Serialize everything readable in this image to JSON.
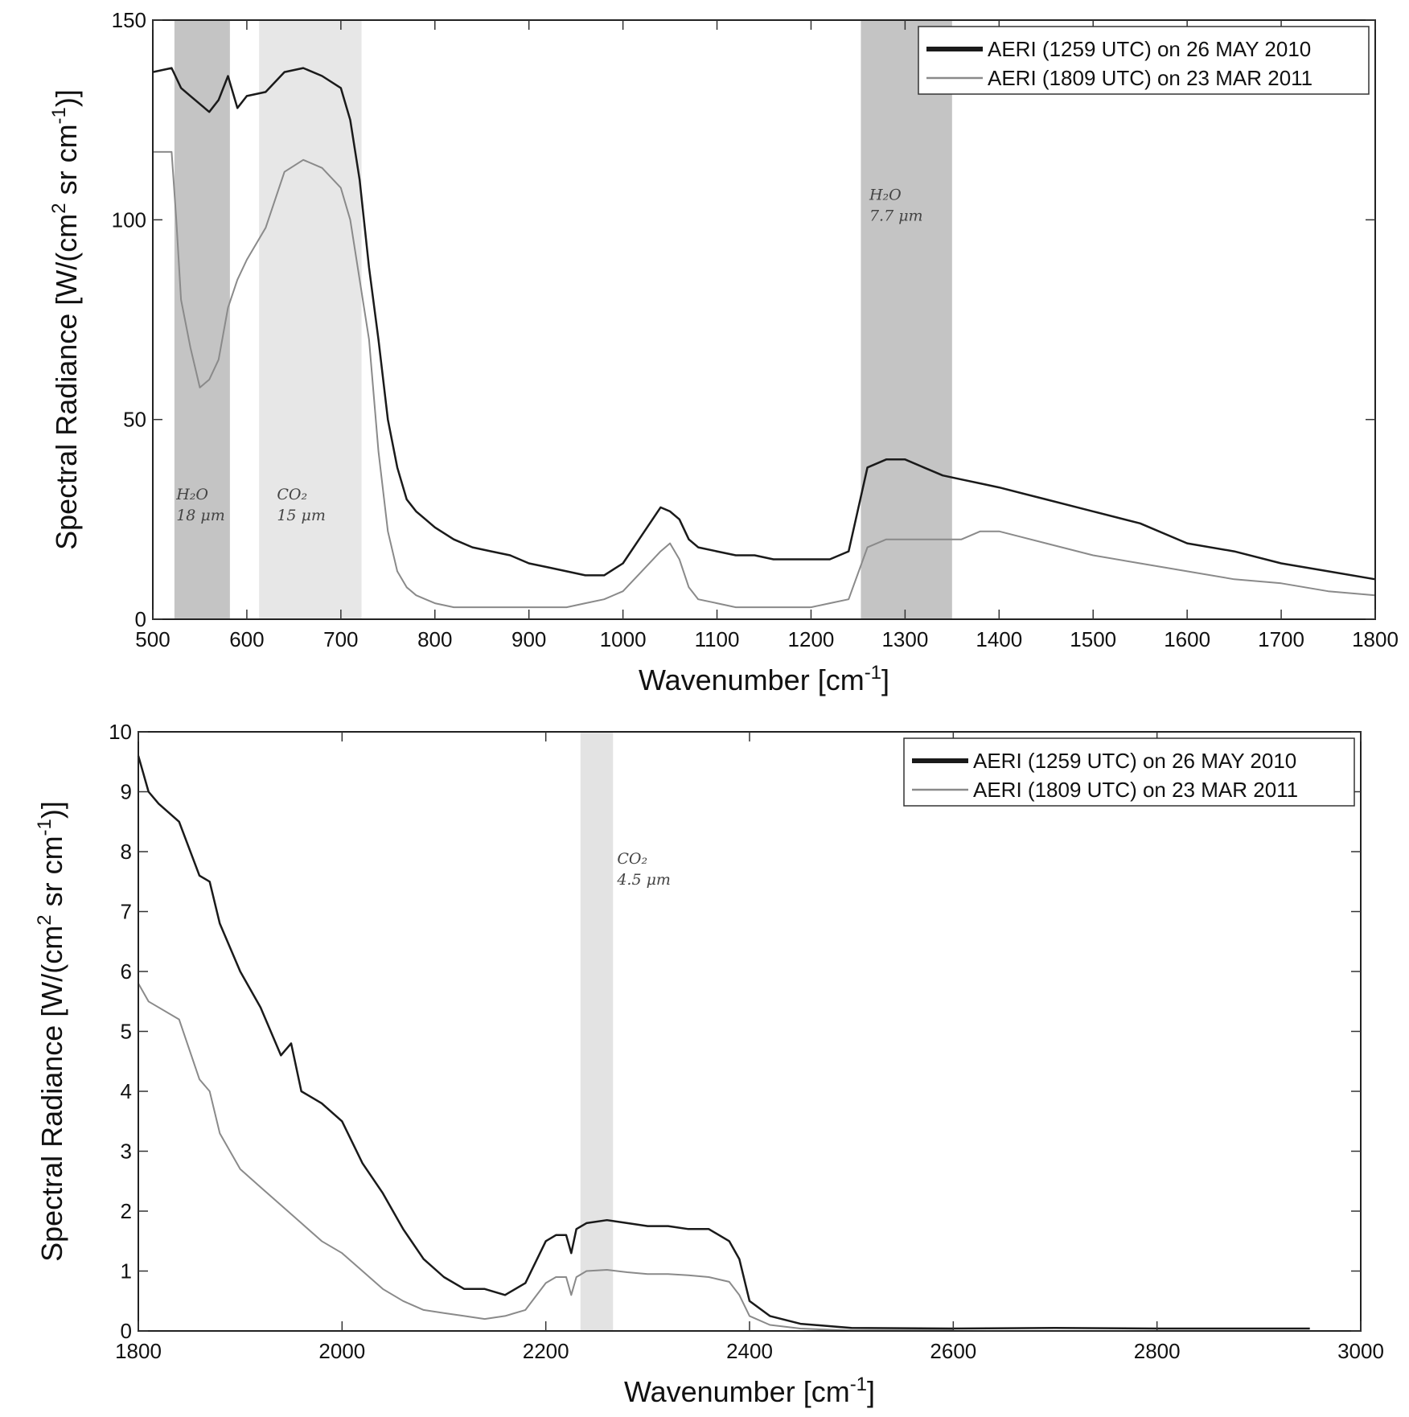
{
  "chart_data": [
    {
      "type": "line",
      "xlabel": "Wavenumber [cm",
      "xlabel_sup": "-1",
      "xlabel_end": "]",
      "ylabel_parts": [
        "Spectral Radiance [W/(cm",
        "2",
        " sr cm",
        "-1",
        ")]"
      ],
      "xlim": [
        500,
        1800
      ],
      "ylim": [
        0,
        150
      ],
      "xticks": [
        500,
        600,
        700,
        800,
        900,
        1000,
        1100,
        1200,
        1300,
        1400,
        1500,
        1600,
        1700,
        1800
      ],
      "yticks": [
        0,
        50,
        100,
        150
      ],
      "legend_position": "top-right",
      "series": [
        {
          "name": "AERI (1259 UTC) on 26 MAY 2010",
          "color": "#1a1a1a",
          "x": [
            500,
            520,
            530,
            540,
            550,
            560,
            570,
            580,
            590,
            600,
            620,
            640,
            660,
            680,
            700,
            710,
            720,
            730,
            740,
            750,
            760,
            770,
            780,
            790,
            800,
            820,
            840,
            860,
            880,
            900,
            920,
            940,
            960,
            980,
            1000,
            1020,
            1040,
            1050,
            1060,
            1070,
            1080,
            1100,
            1120,
            1140,
            1160,
            1180,
            1200,
            1220,
            1240,
            1260,
            1280,
            1300,
            1320,
            1340,
            1360,
            1380,
            1400,
            1450,
            1500,
            1550,
            1600,
            1650,
            1700,
            1750,
            1800
          ],
          "y": [
            137,
            138,
            133,
            131,
            129,
            127,
            130,
            136,
            128,
            131,
            132,
            137,
            138,
            136,
            133,
            125,
            110,
            88,
            70,
            50,
            38,
            30,
            27,
            25,
            23,
            20,
            18,
            17,
            16,
            14,
            13,
            12,
            11,
            11,
            14,
            21,
            28,
            27,
            25,
            20,
            18,
            17,
            16,
            16,
            15,
            15,
            15,
            15,
            17,
            38,
            40,
            40,
            38,
            36,
            35,
            34,
            33,
            30,
            27,
            24,
            19,
            17,
            14,
            12,
            10
          ]
        },
        {
          "name": "AERI (1809 UTC) on 23 MAR 2011",
          "color": "#8a8a8a",
          "x": [
            500,
            520,
            525,
            530,
            540,
            550,
            560,
            570,
            580,
            590,
            600,
            620,
            640,
            660,
            680,
            700,
            710,
            720,
            730,
            740,
            750,
            760,
            770,
            780,
            790,
            800,
            820,
            840,
            860,
            880,
            900,
            920,
            940,
            960,
            980,
            1000,
            1020,
            1040,
            1050,
            1060,
            1070,
            1080,
            1100,
            1120,
            1140,
            1160,
            1180,
            1200,
            1220,
            1240,
            1260,
            1280,
            1300,
            1320,
            1340,
            1360,
            1380,
            1400,
            1450,
            1500,
            1550,
            1600,
            1650,
            1700,
            1750,
            1800
          ],
          "y": [
            117,
            117,
            100,
            80,
            68,
            58,
            60,
            65,
            78,
            85,
            90,
            98,
            112,
            115,
            113,
            108,
            100,
            85,
            70,
            42,
            22,
            12,
            8,
            6,
            5,
            4,
            3,
            3,
            3,
            3,
            3,
            3,
            3,
            4,
            5,
            7,
            12,
            17,
            19,
            15,
            8,
            5,
            4,
            3,
            3,
            3,
            3,
            3,
            4,
            5,
            18,
            20,
            20,
            20,
            20,
            20,
            22,
            22,
            19,
            16,
            14,
            12,
            10,
            9,
            7,
            6
          ]
        }
      ],
      "bands": [
        {
          "x0": 523,
          "x1": 582,
          "color": "#c4c4c4",
          "label": [
            "H₂O",
            "18 μm"
          ],
          "label_x": 525,
          "label_y": 30
        },
        {
          "x0": 613,
          "x1": 722,
          "color": "#e7e7e7",
          "label": [
            "CO₂",
            "15 μm"
          ],
          "label_x": 632,
          "label_y": 30
        },
        {
          "x0": 1253,
          "x1": 1350,
          "color": "#c4c4c4",
          "label": [
            "H₂O",
            "7.7 μm"
          ],
          "label_x": 1262,
          "label_y": 105
        }
      ]
    },
    {
      "type": "line",
      "xlabel": "Wavenumber [cm",
      "xlabel_sup": "-1",
      "xlabel_end": "]",
      "ylabel_parts": [
        "Spectral Radiance [W/(cm",
        "2",
        " sr cm",
        "-1",
        ")]"
      ],
      "xlim": [
        1800,
        3000
      ],
      "ylim": [
        0,
        10
      ],
      "xticks": [
        1800,
        2000,
        2200,
        2400,
        2600,
        2800,
        3000
      ],
      "yticks": [
        0,
        1,
        2,
        3,
        4,
        5,
        6,
        7,
        8,
        9,
        10
      ],
      "legend_position": "top-right",
      "series": [
        {
          "name": "AERI (1259 UTC) on 26 MAY 2010",
          "color": "#1a1a1a",
          "x": [
            1800,
            1810,
            1820,
            1840,
            1860,
            1870,
            1880,
            1900,
            1920,
            1940,
            1950,
            1960,
            1980,
            2000,
            2020,
            2040,
            2060,
            2080,
            2100,
            2120,
            2140,
            2160,
            2180,
            2200,
            2210,
            2220,
            2225,
            2230,
            2240,
            2260,
            2280,
            2300,
            2320,
            2340,
            2360,
            2380,
            2390,
            2400,
            2420,
            2450,
            2500,
            2600,
            2700,
            2800,
            2900,
            2950
          ],
          "y": [
            9.6,
            9.0,
            8.8,
            8.5,
            7.6,
            7.5,
            6.8,
            6.0,
            5.4,
            4.6,
            4.8,
            4.0,
            3.8,
            3.5,
            2.8,
            2.3,
            1.7,
            1.2,
            0.9,
            0.7,
            0.7,
            0.6,
            0.8,
            1.5,
            1.6,
            1.6,
            1.3,
            1.7,
            1.8,
            1.85,
            1.8,
            1.75,
            1.75,
            1.7,
            1.7,
            1.5,
            1.2,
            0.5,
            0.25,
            0.12,
            0.05,
            0.04,
            0.05,
            0.04,
            0.04,
            0.04
          ]
        },
        {
          "name": "AERI (1809 UTC) on 23 MAR 2011",
          "color": "#8a8a8a",
          "x": [
            1800,
            1810,
            1820,
            1840,
            1860,
            1870,
            1880,
            1900,
            1920,
            1940,
            1960,
            1980,
            2000,
            2020,
            2040,
            2060,
            2080,
            2100,
            2120,
            2140,
            2160,
            2180,
            2200,
            2210,
            2220,
            2225,
            2230,
            2240,
            2260,
            2280,
            2300,
            2320,
            2340,
            2360,
            2380,
            2390,
            2400,
            2420,
            2450,
            2480,
            2500,
            2600
          ],
          "y": [
            5.8,
            5.5,
            5.4,
            5.2,
            4.2,
            4.0,
            3.3,
            2.7,
            2.4,
            2.1,
            1.8,
            1.5,
            1.3,
            1.0,
            0.7,
            0.5,
            0.35,
            0.3,
            0.25,
            0.2,
            0.25,
            0.35,
            0.8,
            0.9,
            0.9,
            0.6,
            0.9,
            1.0,
            1.02,
            0.98,
            0.95,
            0.95,
            0.93,
            0.9,
            0.82,
            0.6,
            0.25,
            0.1,
            0.04,
            0.02,
            0.01,
            0.01
          ]
        }
      ],
      "bands": [
        {
          "x0": 2234,
          "x1": 2266,
          "color": "#e3e3e3",
          "label": [
            "CO₂",
            "4.5 μm"
          ],
          "label_x": 2270,
          "label_y": 7.8
        }
      ]
    }
  ]
}
